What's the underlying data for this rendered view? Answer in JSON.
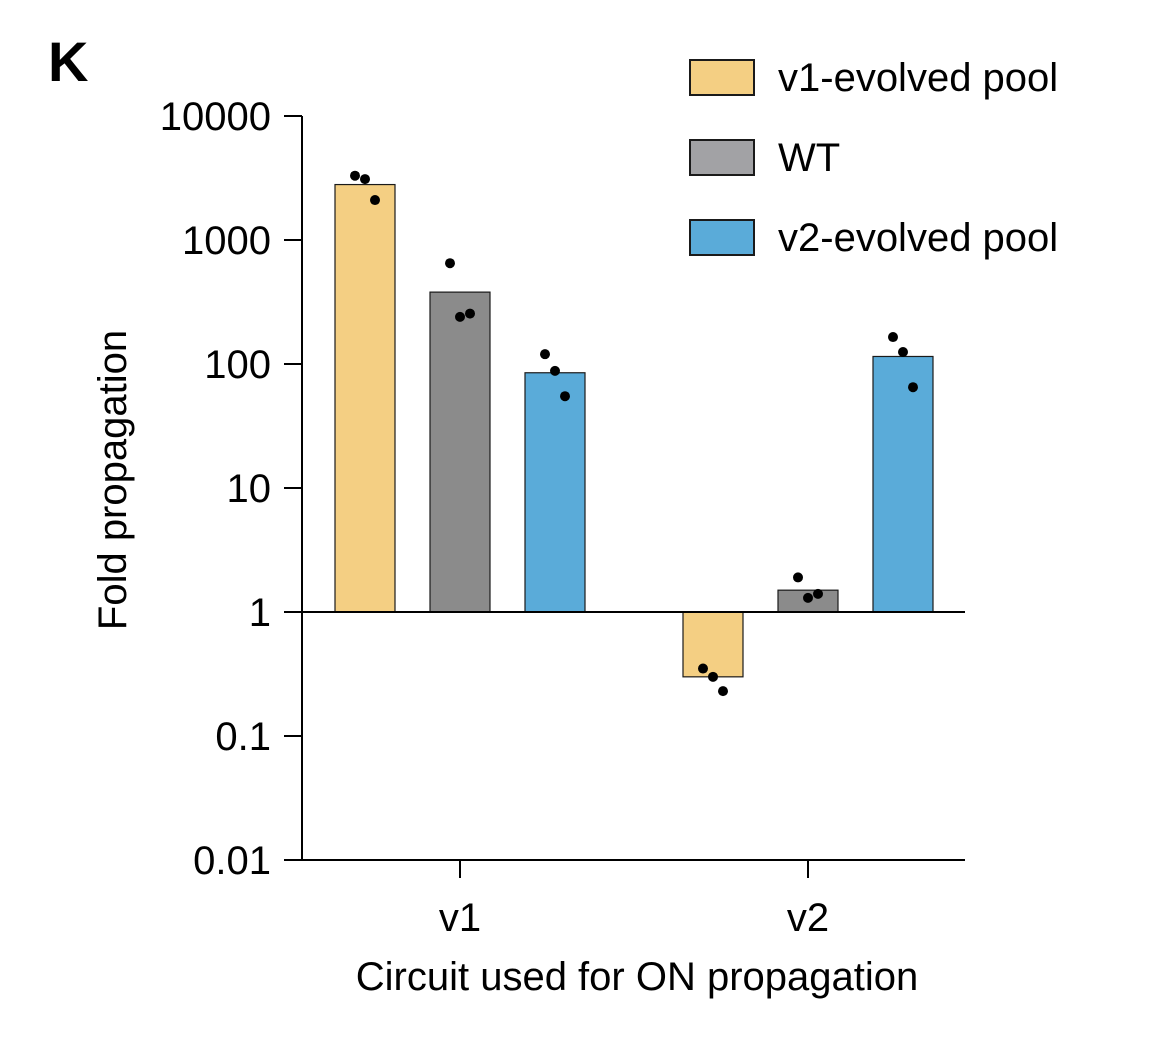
{
  "panel_label": "K",
  "chart_data": {
    "type": "bar",
    "title": "",
    "xlabel": "Circuit used for ON propagation",
    "ylabel": "Fold propagation",
    "yscale": "log",
    "ylim": [
      0.01,
      10000
    ],
    "yticks": [
      "0.01",
      "0.1",
      "1",
      "10",
      "100",
      "1000",
      "10000"
    ],
    "baseline": 1,
    "categories": [
      "v1",
      "v2"
    ],
    "legend_position": "top-right",
    "series": [
      {
        "name": "v1-evolved pool",
        "color": "#F4CF83",
        "values": [
          2800,
          0.3
        ],
        "points": [
          [
            3300,
            3100,
            2100
          ],
          [
            0.35,
            0.3,
            0.23
          ]
        ]
      },
      {
        "name": "WT",
        "color": "#8B8B8B",
        "legend_color": "#A2A2A5",
        "values": [
          380,
          1.5
        ],
        "points": [
          [
            650,
            240,
            255
          ],
          [
            1.9,
            1.3,
            1.4
          ]
        ]
      },
      {
        "name": "v2-evolved pool",
        "color": "#5AABD9",
        "values": [
          85,
          115
        ],
        "points": [
          [
            120,
            88,
            55
          ],
          [
            165,
            125,
            65
          ]
        ]
      }
    ]
  }
}
